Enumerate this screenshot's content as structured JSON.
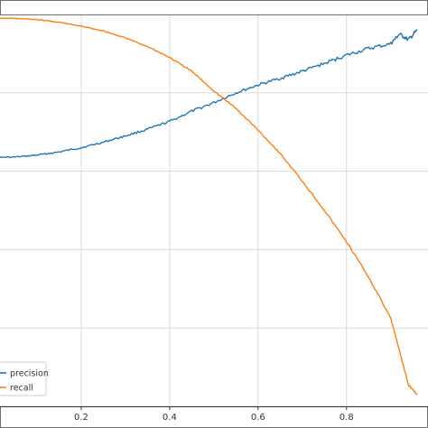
{
  "chart_data": {
    "type": "line",
    "title": "",
    "xlabel": "",
    "ylabel": "",
    "xlim": [
      0.0,
      0.97
    ],
    "ylim": [
      0.0,
      1.0
    ],
    "grid": true,
    "x_ticks": [
      0.2,
      0.4,
      0.6,
      0.8
    ],
    "x_tick_labels": [
      "0.2",
      "0.4",
      "0.6",
      "0.8"
    ],
    "y_gridlines": [
      0.0,
      0.2,
      0.4,
      0.6,
      0.8
    ],
    "legend_position": "bottom-left",
    "series": [
      {
        "name": "precision",
        "color": "#1f77b4",
        "x": [
          0.0,
          0.05,
          0.1,
          0.15,
          0.2,
          0.25,
          0.3,
          0.35,
          0.4,
          0.45,
          0.5,
          0.55,
          0.6,
          0.65,
          0.7,
          0.75,
          0.8,
          0.85,
          0.9,
          0.92,
          0.94,
          0.96
        ],
        "y": [
          0.635,
          0.636,
          0.641,
          0.649,
          0.66,
          0.674,
          0.69,
          0.707,
          0.727,
          0.753,
          0.775,
          0.8,
          0.82,
          0.837,
          0.855,
          0.875,
          0.896,
          0.913,
          0.925,
          0.95,
          0.935,
          0.96
        ]
      },
      {
        "name": "recall",
        "color": "#ff7f0e",
        "x": [
          0.0,
          0.05,
          0.1,
          0.15,
          0.2,
          0.25,
          0.3,
          0.35,
          0.4,
          0.45,
          0.5,
          0.55,
          0.6,
          0.65,
          0.7,
          0.75,
          0.8,
          0.85,
          0.9,
          0.92,
          0.94,
          0.96
        ],
        "y": [
          0.99,
          0.99,
          0.987,
          0.98,
          0.97,
          0.958,
          0.94,
          0.918,
          0.89,
          0.855,
          0.805,
          0.76,
          0.705,
          0.645,
          0.575,
          0.5,
          0.42,
          0.33,
          0.225,
          0.14,
          0.055,
          0.03
        ]
      }
    ]
  }
}
